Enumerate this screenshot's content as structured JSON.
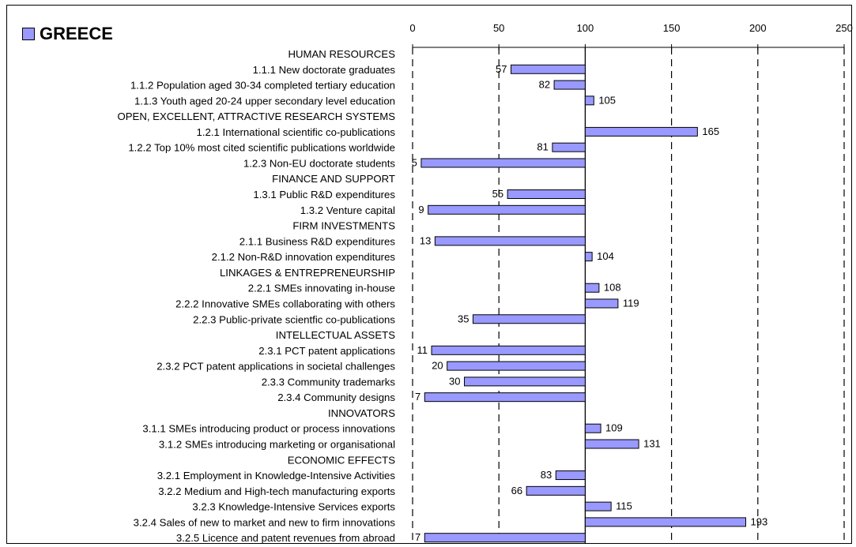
{
  "chart_data": {
    "type": "bar",
    "orientation": "horizontal",
    "series": [
      {
        "name": "GREECE",
        "color": "#9999ff"
      }
    ],
    "xlim": [
      0,
      250
    ],
    "xticks": [
      0,
      50,
      100,
      150,
      200,
      250
    ],
    "reference_value": 100,
    "grid": "vertical dashed",
    "legend": "top-left",
    "rows": [
      {
        "label": "HUMAN RESOURCES",
        "header": true
      },
      {
        "label": "1.1.1 New doctorate graduates",
        "value": 57
      },
      {
        "label": "1.1.2 Population aged 30-34 completed tertiary education",
        "value": 82
      },
      {
        "label": "1.1.3 Youth aged 20-24 upper secondary level education",
        "value": 105
      },
      {
        "label": "OPEN, EXCELLENT, ATTRACTIVE RESEARCH SYSTEMS",
        "header": true
      },
      {
        "label": "1.2.1 International scientific co-publications",
        "value": 165
      },
      {
        "label": "1.2.2 Top 10% most cited scientific publications worldwide",
        "value": 81
      },
      {
        "label": "1.2.3 Non-EU doctorate students",
        "value": 5
      },
      {
        "label": "FINANCE AND SUPPORT",
        "header": true
      },
      {
        "label": "1.3.1 Public R&D expenditures",
        "value": 55
      },
      {
        "label": "1.3.2 Venture capital",
        "value": 9
      },
      {
        "label": "FIRM INVESTMENTS",
        "header": true
      },
      {
        "label": "2.1.1 Business R&D expenditures",
        "value": 13
      },
      {
        "label": "2.1.2 Non-R&D innovation expenditures",
        "value": 104
      },
      {
        "label": "LINKAGES & ENTREPRENEURSHIP",
        "header": true
      },
      {
        "label": "2.2.1 SMEs innovating in-house",
        "value": 108
      },
      {
        "label": "2.2.2 Innovative SMEs collaborating with others",
        "value": 119
      },
      {
        "label": "2.2.3 Public-private scientfic co-publications",
        "value": 35
      },
      {
        "label": "INTELLECTUAL ASSETS",
        "header": true
      },
      {
        "label": "2.3.1 PCT patent applications",
        "value": 11
      },
      {
        "label": "2.3.2 PCT patent applications in societal challenges",
        "value": 20
      },
      {
        "label": "2.3.3 Community trademarks",
        "value": 30
      },
      {
        "label": "2.3.4 Community designs",
        "value": 7
      },
      {
        "label": "INNOVATORS",
        "header": true
      },
      {
        "label": "3.1.1 SMEs introducing product or process innovations",
        "value": 109
      },
      {
        "label": "3.1.2 SMEs introducing marketing or organisational",
        "value": 131
      },
      {
        "label": "ECONOMIC EFFECTS",
        "header": true
      },
      {
        "label": "3.2.1 Employment in Knowledge-Intensive Activities",
        "value": 83
      },
      {
        "label": "3.2.2 Medium and High-tech manufacturing exports",
        "value": 66
      },
      {
        "label": "3.2.3 Knowledge-Intensive Services exports",
        "value": 115
      },
      {
        "label": "3.2.4 Sales of new to market and new to firm innovations",
        "value": 193
      },
      {
        "label": "3.2.5 Licence and patent revenues from abroad",
        "value": 7
      }
    ]
  }
}
